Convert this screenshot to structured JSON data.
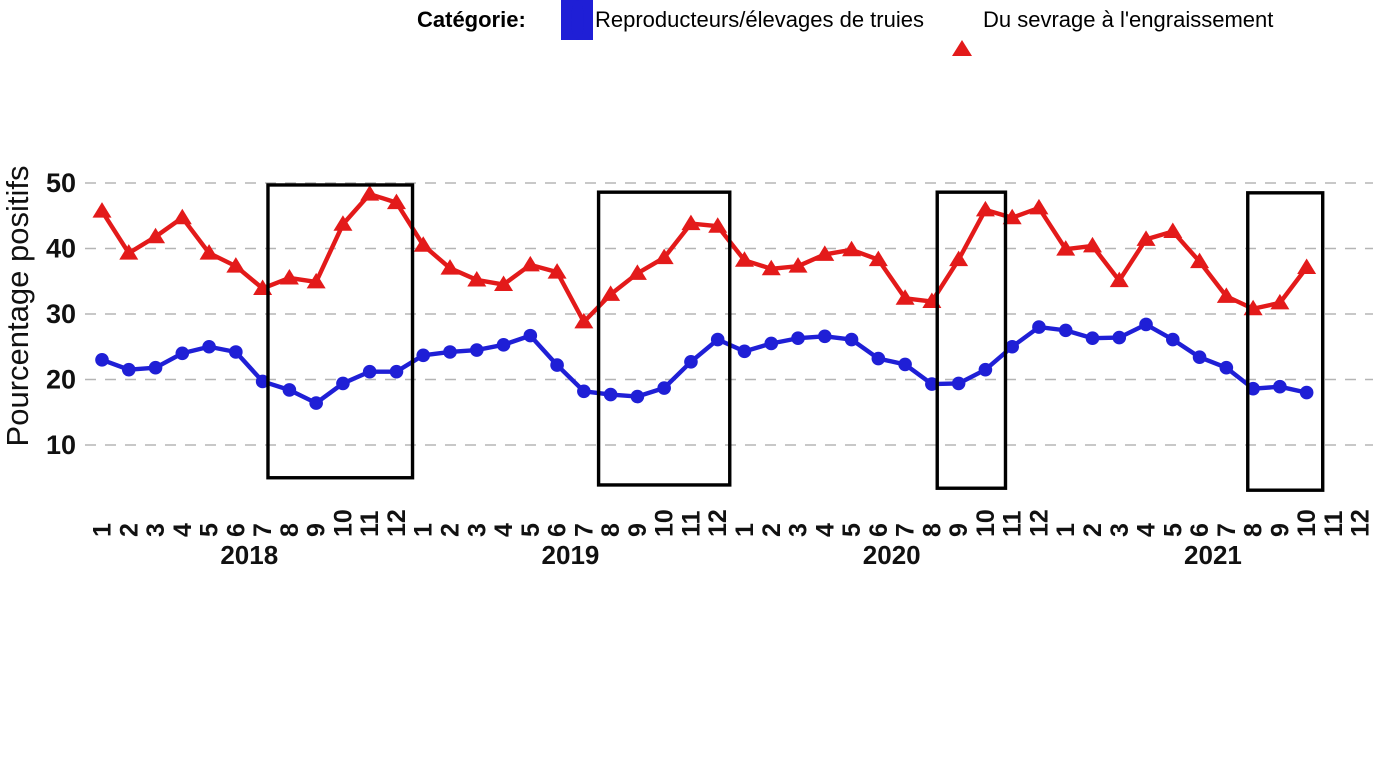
{
  "chart_data": {
    "type": "line",
    "title": "",
    "ylabel": "Pourcentage positifs",
    "xlabel": "",
    "yticks": [
      10,
      20,
      30,
      40,
      50
    ],
    "ylim": [
      0,
      52
    ],
    "grid": "horizontal-dashed",
    "legend": {
      "title": "Catégorie:",
      "position": "bottom"
    },
    "x": {
      "years": [
        "2018",
        "2019",
        "2020",
        "2021"
      ],
      "month_labels": [
        "1",
        "2",
        "3",
        "4",
        "5",
        "6",
        "7",
        "8",
        "9",
        "10",
        "11",
        "12"
      ]
    },
    "series": [
      {
        "name": "Reproducteurs/élevages de truies",
        "marker": "circle",
        "color": "#1f1fd6",
        "values": [
          23.0,
          21.5,
          21.8,
          24.0,
          25.0,
          24.2,
          19.7,
          18.4,
          16.4,
          19.4,
          21.2,
          21.2,
          23.7,
          24.2,
          24.5,
          25.3,
          26.7,
          22.2,
          18.2,
          17.7,
          17.4,
          18.7,
          22.7,
          26.1,
          24.3,
          25.5,
          26.3,
          26.6,
          26.1,
          23.2,
          22.3,
          19.3,
          19.4,
          21.5,
          25.0,
          28.0,
          27.5,
          26.3,
          26.4,
          28.4,
          26.1,
          23.4,
          21.8,
          18.6,
          18.9,
          18.0,
          null,
          null
        ]
      },
      {
        "name": "Du sevrage à l'engraissement",
        "marker": "triangle",
        "color": "#e31a1a",
        "values": [
          45.7,
          39.3,
          41.8,
          44.7,
          39.3,
          37.3,
          33.9,
          35.5,
          34.9,
          43.7,
          48.3,
          47.0,
          40.5,
          37.0,
          35.2,
          34.5,
          37.5,
          36.4,
          28.8,
          33.0,
          36.2,
          38.6,
          43.8,
          43.4,
          38.2,
          36.9,
          37.3,
          39.1,
          39.8,
          38.3,
          32.4,
          31.9,
          38.3,
          45.9,
          44.7,
          46.2,
          39.9,
          40.4,
          35.1,
          41.4,
          42.6,
          38.0,
          32.7,
          30.8,
          31.7,
          37.1,
          null,
          null
        ]
      }
    ],
    "highlight_boxes": [
      {
        "label": "2018 months 8-12",
        "x1_month": 6.2,
        "x2_month": 11.6,
        "y_top": 49.7,
        "y_bottom": 5.0
      },
      {
        "label": "2019 months 8-12",
        "x1_month": 18.55,
        "x2_month": 23.45,
        "y_top": 48.6,
        "y_bottom": 3.9
      },
      {
        "label": "2020 months 9-10",
        "x1_month": 31.2,
        "x2_month": 33.75,
        "y_top": 48.6,
        "y_bottom": 3.4
      },
      {
        "label": "2021 months 8-10",
        "x1_month": 42.8,
        "x2_month": 45.6,
        "y_top": 48.5,
        "y_bottom": 3.1
      }
    ]
  }
}
